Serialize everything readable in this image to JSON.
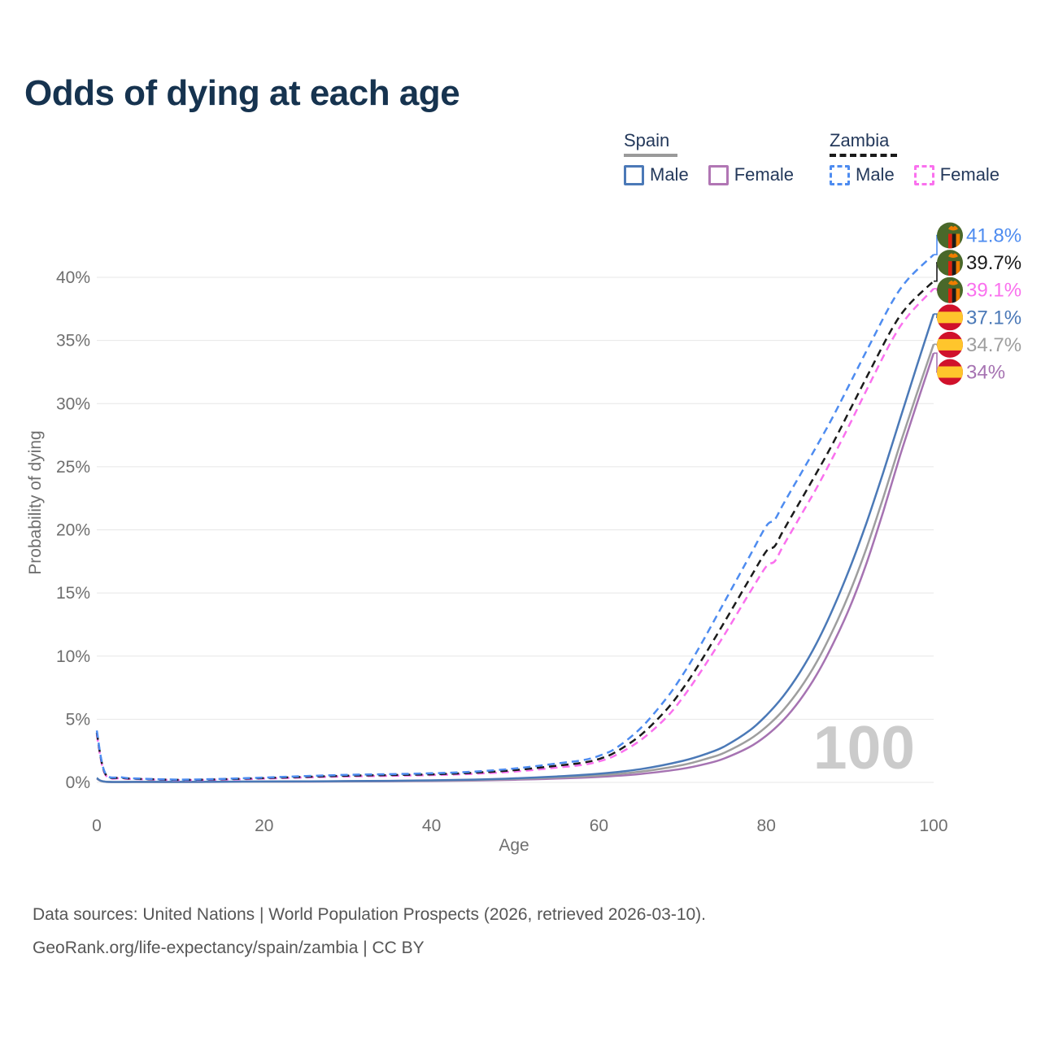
{
  "header": {
    "title": "Odds of dying at each age"
  },
  "legend": {
    "groups": [
      {
        "country": "Spain",
        "line_style": "solid",
        "underline_color": "#9a9a9a",
        "items": [
          {
            "label": "Male",
            "color": "#4b79b7"
          },
          {
            "label": "Female",
            "color": "#b176b4"
          }
        ]
      },
      {
        "country": "Zambia",
        "line_style": "dashed",
        "underline_color": "#1a1a1a",
        "items": [
          {
            "label": "Male",
            "color": "#4e8cf0"
          },
          {
            "label": "Female",
            "color": "#fa70ee"
          }
        ]
      }
    ]
  },
  "chart_data": {
    "type": "line",
    "title": "Odds of dying at each age",
    "xlabel": "Age",
    "ylabel": "Probability of dying",
    "xlim": [
      0,
      100
    ],
    "ylim": [
      0,
      43
    ],
    "grid": "horizontal",
    "legend_position": "top-right",
    "watermark": "100",
    "x_ticks": [
      {
        "v": 0,
        "label": "0"
      },
      {
        "v": 20,
        "label": "20"
      },
      {
        "v": 40,
        "label": "40"
      },
      {
        "v": 60,
        "label": "60"
      },
      {
        "v": 80,
        "label": "80"
      },
      {
        "v": 100,
        "label": "100"
      }
    ],
    "y_ticks": [
      {
        "v": 0,
        "label": "0%"
      },
      {
        "v": 5,
        "label": "5%"
      },
      {
        "v": 10,
        "label": "10%"
      },
      {
        "v": 15,
        "label": "15%"
      },
      {
        "v": 20,
        "label": "20%"
      },
      {
        "v": 25,
        "label": "25%"
      },
      {
        "v": 30,
        "label": "30%"
      },
      {
        "v": 35,
        "label": "35%"
      },
      {
        "v": 40,
        "label": "40%"
      }
    ],
    "series": [
      {
        "name": "Zambia Male",
        "country": "Zambia",
        "sex": "male",
        "flag": "zambia",
        "color": "#4e8cf0",
        "dashed": true,
        "end_label": "41.8%",
        "points": [
          [
            0,
            4.1
          ],
          [
            1,
            0.75
          ],
          [
            3,
            0.4
          ],
          [
            5,
            0.3
          ],
          [
            10,
            0.22
          ],
          [
            15,
            0.28
          ],
          [
            20,
            0.38
          ],
          [
            25,
            0.5
          ],
          [
            30,
            0.6
          ],
          [
            35,
            0.65
          ],
          [
            40,
            0.72
          ],
          [
            45,
            0.85
          ],
          [
            50,
            1.1
          ],
          [
            55,
            1.5
          ],
          [
            58,
            1.75
          ],
          [
            60,
            2.1
          ],
          [
            62,
            2.7
          ],
          [
            65,
            4.3
          ],
          [
            68,
            6.6
          ],
          [
            70,
            8.5
          ],
          [
            72,
            10.7
          ],
          [
            75,
            14.3
          ],
          [
            78,
            17.9
          ],
          [
            80,
            20.3
          ],
          [
            81,
            20.8
          ],
          [
            82,
            22.0
          ],
          [
            84,
            24.3
          ],
          [
            86,
            26.6
          ],
          [
            88,
            29.0
          ],
          [
            90,
            31.6
          ],
          [
            92,
            34.2
          ],
          [
            95,
            38.0
          ],
          [
            97,
            39.9
          ],
          [
            100,
            41.8
          ]
        ]
      },
      {
        "name": "Zambia All",
        "country": "Zambia",
        "sex": "all",
        "flag": "zambia",
        "color": "#1b1b1b",
        "dashed": true,
        "end_label": "39.7%",
        "points": [
          [
            0,
            3.95
          ],
          [
            1,
            0.7
          ],
          [
            3,
            0.36
          ],
          [
            5,
            0.28
          ],
          [
            10,
            0.2
          ],
          [
            15,
            0.25
          ],
          [
            20,
            0.34
          ],
          [
            25,
            0.44
          ],
          [
            30,
            0.53
          ],
          [
            35,
            0.58
          ],
          [
            40,
            0.64
          ],
          [
            45,
            0.76
          ],
          [
            50,
            0.97
          ],
          [
            55,
            1.32
          ],
          [
            58,
            1.55
          ],
          [
            60,
            1.85
          ],
          [
            62,
            2.4
          ],
          [
            65,
            3.75
          ],
          [
            68,
            5.7
          ],
          [
            70,
            7.4
          ],
          [
            72,
            9.4
          ],
          [
            75,
            12.7
          ],
          [
            78,
            16.1
          ],
          [
            80,
            18.3
          ],
          [
            81,
            18.7
          ],
          [
            82,
            19.9
          ],
          [
            84,
            22.2
          ],
          [
            86,
            24.5
          ],
          [
            88,
            26.9
          ],
          [
            90,
            29.5
          ],
          [
            92,
            32.1
          ],
          [
            95,
            35.9
          ],
          [
            97,
            37.8
          ],
          [
            100,
            39.7
          ]
        ]
      },
      {
        "name": "Zambia Female",
        "country": "Zambia",
        "sex": "female",
        "flag": "zambia",
        "color": "#fa70ee",
        "dashed": true,
        "end_label": "39.1%",
        "points": [
          [
            0,
            3.8
          ],
          [
            1,
            0.64
          ],
          [
            3,
            0.33
          ],
          [
            5,
            0.26
          ],
          [
            10,
            0.18
          ],
          [
            15,
            0.22
          ],
          [
            20,
            0.3
          ],
          [
            25,
            0.39
          ],
          [
            30,
            0.47
          ],
          [
            35,
            0.52
          ],
          [
            40,
            0.58
          ],
          [
            45,
            0.68
          ],
          [
            50,
            0.86
          ],
          [
            55,
            1.17
          ],
          [
            58,
            1.38
          ],
          [
            60,
            1.66
          ],
          [
            62,
            2.15
          ],
          [
            65,
            3.35
          ],
          [
            68,
            5.1
          ],
          [
            70,
            6.7
          ],
          [
            72,
            8.6
          ],
          [
            75,
            11.7
          ],
          [
            78,
            15.0
          ],
          [
            80,
            17.1
          ],
          [
            81,
            17.5
          ],
          [
            82,
            18.7
          ],
          [
            84,
            21.0
          ],
          [
            86,
            23.3
          ],
          [
            88,
            25.8
          ],
          [
            90,
            28.4
          ],
          [
            92,
            31.1
          ],
          [
            95,
            35.0
          ],
          [
            97,
            37.0
          ],
          [
            100,
            39.1
          ]
        ]
      },
      {
        "name": "Spain Male",
        "country": "Spain",
        "sex": "male",
        "flag": "spain",
        "color": "#4b79b7",
        "dashed": false,
        "end_label": "37.1%",
        "points": [
          [
            0,
            0.35
          ],
          [
            1,
            0.06
          ],
          [
            5,
            0.04
          ],
          [
            10,
            0.04
          ],
          [
            15,
            0.05
          ],
          [
            20,
            0.07
          ],
          [
            25,
            0.08
          ],
          [
            30,
            0.1
          ],
          [
            35,
            0.12
          ],
          [
            40,
            0.16
          ],
          [
            45,
            0.22
          ],
          [
            50,
            0.32
          ],
          [
            55,
            0.47
          ],
          [
            60,
            0.68
          ],
          [
            65,
            1.05
          ],
          [
            70,
            1.7
          ],
          [
            73,
            2.3
          ],
          [
            75,
            2.85
          ],
          [
            78,
            4.1
          ],
          [
            80,
            5.3
          ],
          [
            82,
            6.8
          ],
          [
            84,
            8.7
          ],
          [
            86,
            11.0
          ],
          [
            88,
            13.8
          ],
          [
            90,
            17.0
          ],
          [
            92,
            20.6
          ],
          [
            94,
            24.6
          ],
          [
            96,
            28.8
          ],
          [
            98,
            33.0
          ],
          [
            100,
            37.1
          ]
        ]
      },
      {
        "name": "Spain All",
        "country": "Spain",
        "sex": "all",
        "flag": "spain",
        "color": "#9e9e9e",
        "dashed": false,
        "end_label": "34.7%",
        "points": [
          [
            0,
            0.33
          ],
          [
            1,
            0.05
          ],
          [
            5,
            0.035
          ],
          [
            10,
            0.035
          ],
          [
            15,
            0.045
          ],
          [
            20,
            0.06
          ],
          [
            25,
            0.07
          ],
          [
            30,
            0.09
          ],
          [
            35,
            0.11
          ],
          [
            40,
            0.14
          ],
          [
            45,
            0.19
          ],
          [
            50,
            0.27
          ],
          [
            55,
            0.39
          ],
          [
            60,
            0.55
          ],
          [
            65,
            0.85
          ],
          [
            70,
            1.38
          ],
          [
            73,
            1.9
          ],
          [
            75,
            2.35
          ],
          [
            78,
            3.4
          ],
          [
            80,
            4.4
          ],
          [
            82,
            5.7
          ],
          [
            84,
            7.4
          ],
          [
            86,
            9.5
          ],
          [
            88,
            12.1
          ],
          [
            90,
            15.1
          ],
          [
            92,
            18.6
          ],
          [
            94,
            22.6
          ],
          [
            96,
            26.8
          ],
          [
            98,
            30.8
          ],
          [
            100,
            34.7
          ]
        ]
      },
      {
        "name": "Spain Female",
        "country": "Spain",
        "sex": "female",
        "flag": "spain",
        "color": "#a673b2",
        "dashed": false,
        "end_label": "34%",
        "points": [
          [
            0,
            0.3
          ],
          [
            1,
            0.05
          ],
          [
            5,
            0.03
          ],
          [
            10,
            0.03
          ],
          [
            15,
            0.04
          ],
          [
            20,
            0.05
          ],
          [
            25,
            0.06
          ],
          [
            30,
            0.07
          ],
          [
            35,
            0.09
          ],
          [
            40,
            0.11
          ],
          [
            45,
            0.15
          ],
          [
            50,
            0.21
          ],
          [
            55,
            0.3
          ],
          [
            60,
            0.43
          ],
          [
            65,
            0.67
          ],
          [
            70,
            1.08
          ],
          [
            73,
            1.5
          ],
          [
            75,
            1.9
          ],
          [
            78,
            2.8
          ],
          [
            80,
            3.7
          ],
          [
            82,
            4.9
          ],
          [
            84,
            6.5
          ],
          [
            86,
            8.5
          ],
          [
            88,
            11.0
          ],
          [
            90,
            13.9
          ],
          [
            92,
            17.4
          ],
          [
            94,
            21.5
          ],
          [
            96,
            25.9
          ],
          [
            98,
            30.0
          ],
          [
            100,
            34.0
          ]
        ]
      }
    ],
    "colors": {
      "title": "#16334f",
      "axis_text": "#6f6f6f",
      "gridline": "#e7e7e7",
      "watermark": "#cbcbcb",
      "footer_text": "#565656",
      "zambia_flag_green": "#49682a",
      "zambia_flag_red": "#de2010",
      "zambia_flag_black": "#1a1a1a",
      "zambia_flag_orange": "#ef7d00",
      "spain_flag_red": "#d0112b",
      "spain_flag_yellow": "#ffc52c"
    }
  },
  "footer": {
    "line1": "Data sources: United Nations | World Population Prospects (2026, retrieved 2026-03-10).",
    "line2": "GeoRank.org/life-expectancy/spain/zambia | CC BY"
  }
}
